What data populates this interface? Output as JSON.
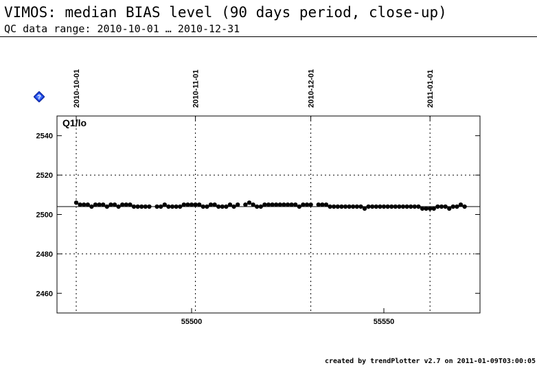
{
  "header": {
    "title": "VIMOS: median BIAS level (90 days period, close-up)",
    "subtitle": "QC data range: 2010-10-01 … 2010-12-31"
  },
  "help_icon": {
    "name": "help-icon",
    "glyph": "?"
  },
  "footer": {
    "text": "created by trendPlotter v2.7 on 2011-01-09T03:00:05"
  },
  "chart_data": {
    "type": "scatter",
    "panel_label": "Q1/lo",
    "xlim": [
      55465,
      55575
    ],
    "ylim": [
      2450,
      2550
    ],
    "x_ticks": [
      55500,
      55550
    ],
    "x_tick_labels": [
      "55500",
      "55550"
    ],
    "y_ticks": [
      2460,
      2480,
      2500,
      2520,
      2540
    ],
    "y_tick_labels": [
      "2460",
      "2480",
      "2500",
      "2520",
      "2540"
    ],
    "y_grid": [
      2480,
      2520
    ],
    "date_markers": [
      {
        "label": "2010-10-01",
        "x": 55470
      },
      {
        "label": "2010-11-01",
        "x": 55501
      },
      {
        "label": "2010-12-01",
        "x": 55531
      },
      {
        "label": "2011-01-01",
        "x": 55562
      }
    ],
    "reference_line": 2504,
    "series": [
      {
        "marker": "filled-circle",
        "color": "#000000",
        "points": [
          [
            55470,
            2506
          ],
          [
            55471,
            2505
          ],
          [
            55472,
            2505
          ],
          [
            55473,
            2505
          ],
          [
            55474,
            2504
          ],
          [
            55475,
            2505
          ],
          [
            55476,
            2505
          ],
          [
            55477,
            2505
          ],
          [
            55478,
            2504
          ],
          [
            55479,
            2505
          ],
          [
            55480,
            2505
          ],
          [
            55481,
            2504
          ],
          [
            55482,
            2505
          ],
          [
            55483,
            2505
          ],
          [
            55484,
            2505
          ],
          [
            55485,
            2504
          ],
          [
            55486,
            2504
          ],
          [
            55487,
            2504
          ],
          [
            55488,
            2504
          ],
          [
            55489,
            2504
          ],
          [
            55491,
            2504
          ],
          [
            55492,
            2504
          ],
          [
            55493,
            2505
          ],
          [
            55494,
            2504
          ],
          [
            55495,
            2504
          ],
          [
            55496,
            2504
          ],
          [
            55497,
            2504
          ],
          [
            55498,
            2505
          ],
          [
            55499,
            2505
          ],
          [
            55500,
            2505
          ],
          [
            55501,
            2505
          ],
          [
            55502,
            2505
          ],
          [
            55503,
            2504
          ],
          [
            55504,
            2504
          ],
          [
            55505,
            2505
          ],
          [
            55506,
            2505
          ],
          [
            55507,
            2504
          ],
          [
            55508,
            2504
          ],
          [
            55509,
            2504
          ],
          [
            55510,
            2505
          ],
          [
            55511,
            2504
          ],
          [
            55512,
            2505
          ],
          [
            55514,
            2505
          ],
          [
            55515,
            2506
          ],
          [
            55516,
            2505
          ],
          [
            55517,
            2504
          ],
          [
            55518,
            2504
          ],
          [
            55519,
            2505
          ],
          [
            55520,
            2505
          ],
          [
            55521,
            2505
          ],
          [
            55522,
            2505
          ],
          [
            55523,
            2505
          ],
          [
            55524,
            2505
          ],
          [
            55525,
            2505
          ],
          [
            55526,
            2505
          ],
          [
            55527,
            2505
          ],
          [
            55528,
            2504
          ],
          [
            55529,
            2505
          ],
          [
            55530,
            2505
          ],
          [
            55531,
            2505
          ],
          [
            55533,
            2505
          ],
          [
            55534,
            2505
          ],
          [
            55535,
            2505
          ],
          [
            55536,
            2504
          ],
          [
            55537,
            2504
          ],
          [
            55538,
            2504
          ],
          [
            55539,
            2504
          ],
          [
            55540,
            2504
          ],
          [
            55541,
            2504
          ],
          [
            55542,
            2504
          ],
          [
            55543,
            2504
          ],
          [
            55544,
            2504
          ],
          [
            55545,
            2503
          ],
          [
            55546,
            2504
          ],
          [
            55547,
            2504
          ],
          [
            55548,
            2504
          ],
          [
            55549,
            2504
          ],
          [
            55550,
            2504
          ],
          [
            55551,
            2504
          ],
          [
            55552,
            2504
          ],
          [
            55553,
            2504
          ],
          [
            55554,
            2504
          ],
          [
            55555,
            2504
          ],
          [
            55556,
            2504
          ],
          [
            55557,
            2504
          ],
          [
            55558,
            2504
          ],
          [
            55559,
            2504
          ],
          [
            55560,
            2503
          ],
          [
            55561,
            2503
          ],
          [
            55562,
            2503
          ],
          [
            55563,
            2503
          ],
          [
            55564,
            2504
          ],
          [
            55565,
            2504
          ],
          [
            55566,
            2504
          ],
          [
            55567,
            2503
          ],
          [
            55568,
            2504
          ],
          [
            55569,
            2504
          ],
          [
            55570,
            2505
          ],
          [
            55571,
            2504
          ]
        ]
      }
    ]
  }
}
